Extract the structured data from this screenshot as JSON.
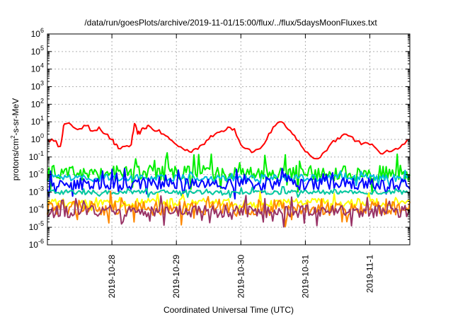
{
  "chart_data": {
    "type": "line",
    "title": "/data/run/goesPlots/archive/2019-11-01/15:00/flux/../flux/5daysMoonFluxes.txt",
    "xlabel": "Coordinated Universal Time (UTC)",
    "ylabel_parts": [
      "protons/cm",
      "2",
      "-s-sr-MeV"
    ],
    "y_scale": "log",
    "ylim": [
      1e-06,
      1000000.0
    ],
    "xlim_days": [
      0,
      5.62
    ],
    "x_tick_labels": [
      {
        "day": 1.0,
        "label": "2019-10-28"
      },
      {
        "day": 2.0,
        "label": "2019-10-29"
      },
      {
        "day": 3.0,
        "label": "2019-10-30"
      },
      {
        "day": 4.0,
        "label": "2019-10-31"
      },
      {
        "day": 5.0,
        "label": "2019-11-1"
      }
    ],
    "y_tick_exponents": [
      -6,
      -5,
      -4,
      -3,
      -2,
      -1,
      0,
      1,
      2,
      3,
      4,
      5,
      6
    ],
    "grid": true,
    "series": [
      {
        "color": "#ff0000",
        "x": [
          0.0,
          0.1,
          0.2,
          0.25,
          0.3,
          0.4,
          0.5,
          0.6,
          0.7,
          0.8,
          0.9,
          1.0,
          1.05,
          1.1,
          1.2,
          1.3,
          1.35,
          1.4,
          1.45,
          1.5,
          1.55,
          1.6,
          1.7,
          1.8,
          1.9,
          2.0,
          2.1,
          2.2,
          2.3,
          2.4,
          2.5,
          2.6,
          2.7,
          2.8,
          2.9,
          3.0,
          3.1,
          3.2,
          3.3,
          3.4,
          3.5,
          3.6,
          3.7,
          3.8,
          3.9,
          4.0,
          4.1,
          4.2,
          4.3,
          4.4,
          4.5,
          4.6,
          4.7,
          4.8,
          4.9,
          5.0,
          5.1,
          5.2,
          5.3,
          5.4,
          5.5,
          5.62
        ],
        "values": [
          1,
          0.8,
          0.4,
          6,
          8,
          5,
          4,
          6,
          3,
          5,
          2,
          1,
          0.5,
          0.3,
          0.4,
          0.5,
          8,
          2,
          3,
          4,
          6,
          5,
          3,
          2,
          1,
          0.5,
          0.3,
          0.2,
          0.3,
          0.5,
          1,
          2,
          3,
          5,
          4,
          0.5,
          0.3,
          0.2,
          0.3,
          1,
          5,
          10,
          5,
          2,
          0.8,
          0.2,
          0.1,
          0.08,
          0.2,
          0.6,
          1.2,
          2,
          1.5,
          0.8,
          0.6,
          0.5,
          0.3,
          0.15,
          0.2,
          0.3,
          0.5,
          1
        ]
      },
      {
        "color": "#00ee00",
        "base": 0.012,
        "spread": 0.45
      },
      {
        "color": "#00bbdd",
        "base": 0.0065,
        "spread": 0.2
      },
      {
        "color": "#0000ff",
        "base": 0.003,
        "spread": 0.35
      },
      {
        "color": "#00c8a0",
        "base": 0.001,
        "spread": 0.12
      },
      {
        "color": "#ffff00",
        "base": 0.00025,
        "spread": 0.25
      },
      {
        "color": "#ff8800",
        "base": 0.00012,
        "spread": 0.4
      },
      {
        "color": "#993366",
        "base": 8e-05,
        "spread": 0.35
      }
    ]
  }
}
